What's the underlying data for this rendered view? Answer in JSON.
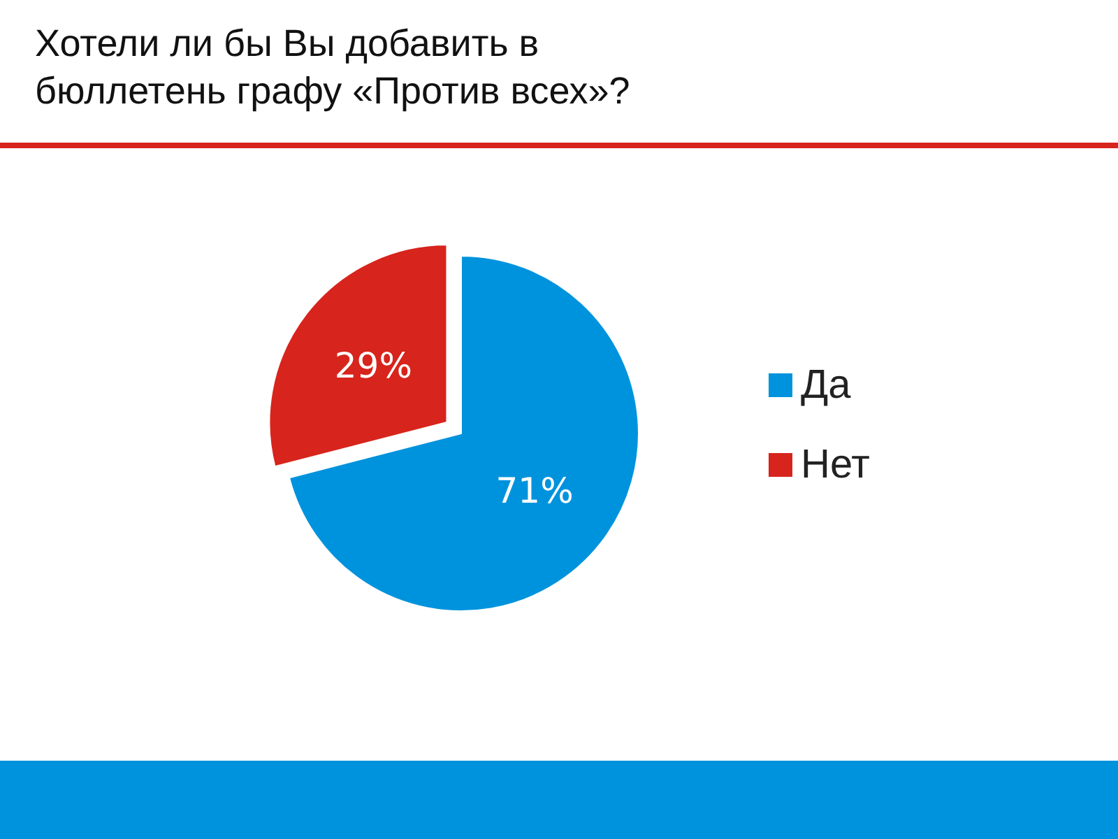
{
  "chart_data": {
    "type": "pie",
    "title": "Хотели ли бы Вы добавить в бюллетень графу «Против всех»?",
    "categories": [
      "Да",
      "Нет"
    ],
    "values": [
      71,
      29
    ],
    "colors": [
      "#0093dd",
      "#d7241c"
    ],
    "value_labels": [
      "71%",
      "29%"
    ],
    "legend": "right"
  }
}
